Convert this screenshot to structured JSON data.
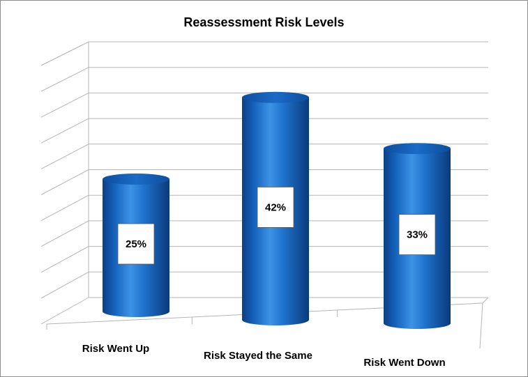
{
  "chart_data": {
    "type": "bar",
    "style": "3d-cylinder",
    "title": "Reassessment Risk Levels",
    "categories": [
      "Risk Went Up",
      "Risk Stayed the Same",
      "Risk Went Down"
    ],
    "values": [
      25,
      42,
      33
    ],
    "data_labels": [
      "25%",
      "42%",
      "33%"
    ],
    "ylim": [
      0,
      50
    ],
    "grid": true,
    "bar_color": "#1266c1",
    "label_box_color": "#ffffff"
  }
}
